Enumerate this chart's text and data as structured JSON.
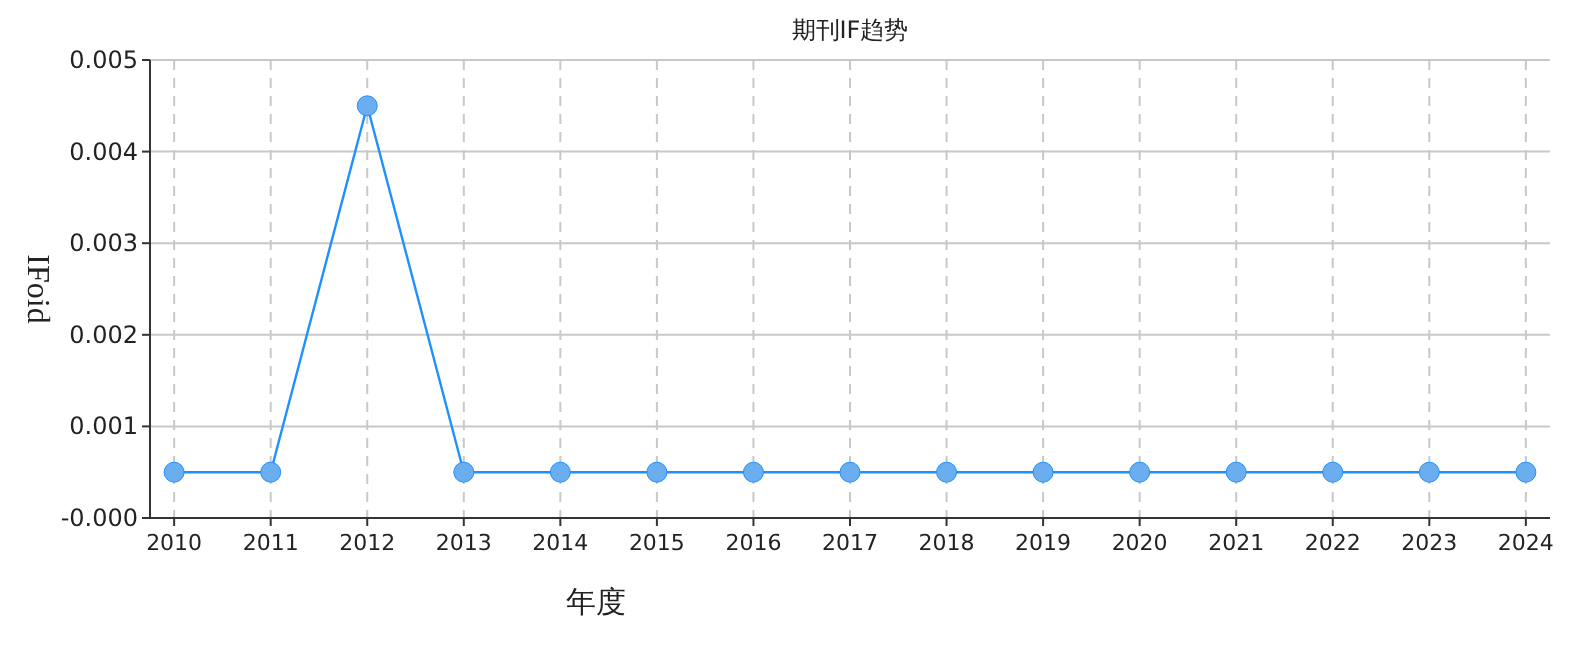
{
  "chart_data": {
    "type": "line",
    "title": "期刊IF趋势",
    "xlabel": "年度",
    "ylabel": "IFoid",
    "categories": [
      "2010",
      "2011",
      "2012",
      "2013",
      "2014",
      "2015",
      "2016",
      "2017",
      "2018",
      "2019",
      "2020",
      "2021",
      "2022",
      "2023",
      "2024"
    ],
    "series": [
      {
        "color": "#1e90ff",
        "values": [
          0.0005,
          0.0005,
          0.0045,
          0.0005,
          0.0005,
          0.0005,
          0.0005,
          0.0005,
          0.0005,
          0.0005,
          0.0005,
          0.0005,
          0.0005,
          0.0005,
          0.0005
        ]
      }
    ],
    "ylim": [
      0,
      0.005
    ],
    "yticks": [
      {
        "value": 0,
        "label": "-0.000"
      },
      {
        "value": 0.001,
        "label": "0.001"
      },
      {
        "value": 0.002,
        "label": "0.002"
      },
      {
        "value": 0.003,
        "label": "0.003"
      },
      {
        "value": 0.004,
        "label": "0.004"
      },
      {
        "value": 0.005,
        "label": "0.005"
      }
    ],
    "grid": true,
    "marker": "circle"
  }
}
